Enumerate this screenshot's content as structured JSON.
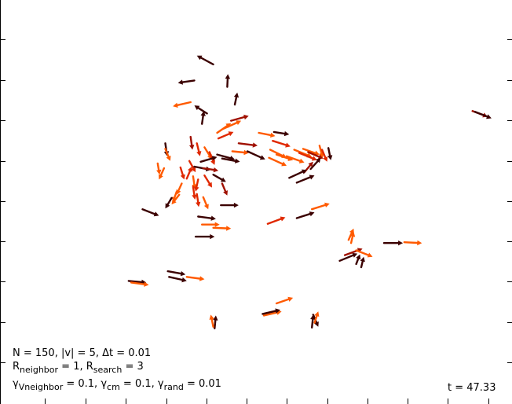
{
  "chart_data": {
    "type": "scatter",
    "title": "",
    "xlabel": "",
    "ylabel": "",
    "grid": false,
    "legend": "none",
    "colors": {
      "dark": "#3b0000",
      "mid": "#a01000",
      "red": "#e02800",
      "orange": "#ff5a00",
      "light": "#ff7a10"
    },
    "arrows": [
      {
        "x": 5.0,
        "y": 80.0,
        "u": -2.6,
        "v": -0.6,
        "c": "dark"
      },
      {
        "x": 4.4,
        "y": 74.6,
        "u": -2.8,
        "v": -1.0,
        "c": "orange"
      },
      {
        "x": 8.0,
        "y": 84.0,
        "u": -2.6,
        "v": 2.2,
        "c": "dark"
      },
      {
        "x": 10.2,
        "y": 78.4,
        "u": 0.1,
        "v": 3.2,
        "c": "dark"
      },
      {
        "x": 11.4,
        "y": 74.0,
        "u": 0.4,
        "v": 3.0,
        "c": "dark"
      },
      {
        "x": 7.0,
        "y": 71.8,
        "u": -2.0,
        "v": 2.0,
        "c": "dark"
      },
      {
        "x": 6.2,
        "y": 69.2,
        "u": 0.3,
        "v": 3.2,
        "c": "dark"
      },
      {
        "x": 10.8,
        "y": 70.0,
        "u": 2.8,
        "v": 1.2,
        "c": "mid"
      },
      {
        "x": 9.6,
        "y": 68.0,
        "u": 2.8,
        "v": 2.0,
        "c": "orange"
      },
      {
        "x": 8.6,
        "y": 67.0,
        "u": 2.2,
        "v": 2.4,
        "c": "orange"
      },
      {
        "x": 8.8,
        "y": 65.6,
        "u": 2.4,
        "v": 1.6,
        "c": "red"
      },
      {
        "x": 12.0,
        "y": 64.4,
        "u": 3.0,
        "v": -0.6,
        "c": "mid"
      },
      {
        "x": 11.0,
        "y": 62.4,
        "u": 2.6,
        "v": -0.4,
        "c": "orange"
      },
      {
        "x": 13.4,
        "y": 62.4,
        "u": 2.8,
        "v": -2.0,
        "c": "dark"
      },
      {
        "x": 0.4,
        "y": 64.4,
        "u": 0.3,
        "v": -3.2,
        "c": "dark"
      },
      {
        "x": 0.4,
        "y": 63.0,
        "u": 0.8,
        "v": -3.0,
        "c": "orange"
      },
      {
        "x": -0.8,
        "y": 59.4,
        "u": 0.3,
        "v": -2.8,
        "c": "orange"
      },
      {
        "x": 0.2,
        "y": 58.2,
        "u": -0.8,
        "v": -2.8,
        "c": "orange"
      },
      {
        "x": 4.4,
        "y": 66.0,
        "u": 0.3,
        "v": -3.2,
        "c": "mid"
      },
      {
        "x": 5.4,
        "y": 64.4,
        "u": 0.5,
        "v": -3.2,
        "c": "red"
      },
      {
        "x": 6.6,
        "y": 63.4,
        "u": 1.2,
        "v": -3.0,
        "c": "orange"
      },
      {
        "x": 7.4,
        "y": 62.2,
        "u": 0.8,
        "v": -3.2,
        "c": "red"
      },
      {
        "x": 8.6,
        "y": 61.6,
        "u": 2.8,
        "v": -1.2,
        "c": "dark"
      },
      {
        "x": 9.4,
        "y": 60.6,
        "u": 2.8,
        "v": -0.8,
        "c": "dark"
      },
      {
        "x": 4.2,
        "y": 60.0,
        "u": 1.0,
        "v": -2.8,
        "c": "red"
      },
      {
        "x": 5.0,
        "y": 58.6,
        "u": 2.6,
        "v": -0.8,
        "c": "dark"
      },
      {
        "x": 6.0,
        "y": 59.8,
        "u": 2.6,
        "v": 1.2,
        "c": "dark"
      },
      {
        "x": 6.4,
        "y": 58.2,
        "u": 2.4,
        "v": -0.6,
        "c": "mid"
      },
      {
        "x": 3.8,
        "y": 55.6,
        "u": 0.8,
        "v": 3.0,
        "c": "red"
      },
      {
        "x": 4.8,
        "y": 56.2,
        "u": 0.3,
        "v": -3.2,
        "c": "orange"
      },
      {
        "x": 5.6,
        "y": 55.4,
        "u": -0.4,
        "v": -3.0,
        "c": "red"
      },
      {
        "x": 6.6,
        "y": 56.4,
        "u": 1.2,
        "v": -3.0,
        "c": "red"
      },
      {
        "x": 8.0,
        "y": 56.6,
        "u": 2.0,
        "v": -1.8,
        "c": "dark"
      },
      {
        "x": 9.4,
        "y": 54.4,
        "u": 0.8,
        "v": -3.0,
        "c": "mid"
      },
      {
        "x": 2.8,
        "y": 58.4,
        "u": 0.6,
        "v": -3.0,
        "c": "red"
      },
      {
        "x": 3.0,
        "y": 54.4,
        "u": -0.8,
        "v": -2.8,
        "c": "orange"
      },
      {
        "x": 2.2,
        "y": 52.4,
        "u": -0.6,
        "v": -2.6,
        "c": "orange"
      },
      {
        "x": 1.4,
        "y": 50.8,
        "u": -1.0,
        "v": -2.6,
        "c": "dark"
      },
      {
        "x": 2.6,
        "y": 51.6,
        "u": -1.2,
        "v": -2.4,
        "c": "orange"
      },
      {
        "x": 4.8,
        "y": 53.6,
        "u": 0.3,
        "v": -3.2,
        "c": "red"
      },
      {
        "x": 5.4,
        "y": 51.8,
        "u": 0.3,
        "v": -3.2,
        "c": "red"
      },
      {
        "x": 6.4,
        "y": 51.0,
        "u": 0.8,
        "v": -3.0,
        "c": "orange"
      },
      {
        "x": 9.2,
        "y": 49.0,
        "u": 2.8,
        "v": 0.0,
        "c": "dark"
      },
      {
        "x": 17.6,
        "y": 67.2,
        "u": 2.4,
        "v": -0.6,
        "c": "dark"
      },
      {
        "x": 15.2,
        "y": 67.0,
        "u": 2.6,
        "v": -0.8,
        "c": "orange"
      },
      {
        "x": 17.4,
        "y": 65.0,
        "u": 2.8,
        "v": -1.4,
        "c": "red"
      },
      {
        "x": 17.0,
        "y": 62.8,
        "u": 2.6,
        "v": -2.0,
        "c": "orange"
      },
      {
        "x": 16.8,
        "y": 60.8,
        "u": 2.8,
        "v": -2.0,
        "c": "orange"
      },
      {
        "x": 18.0,
        "y": 61.6,
        "u": 2.6,
        "v": -1.4,
        "c": "orange"
      },
      {
        "x": 19.6,
        "y": 61.2,
        "u": 2.8,
        "v": -1.6,
        "c": "orange"
      },
      {
        "x": 20.8,
        "y": 62.8,
        "u": 2.8,
        "v": -1.8,
        "c": "orange"
      },
      {
        "x": 21.6,
        "y": 62.0,
        "u": 2.8,
        "v": -1.8,
        "c": "red"
      },
      {
        "x": 22.2,
        "y": 63.0,
        "u": 2.6,
        "v": -1.4,
        "c": "orange"
      },
      {
        "x": 23.0,
        "y": 62.2,
        "u": 2.4,
        "v": -1.6,
        "c": "mid"
      },
      {
        "x": 24.8,
        "y": 63.8,
        "u": 0.5,
        "v": -3.0,
        "c": "orange"
      },
      {
        "x": 25.2,
        "y": 62.8,
        "u": 0.8,
        "v": -3.0,
        "c": "red"
      },
      {
        "x": 26.2,
        "y": 63.2,
        "u": 0.4,
        "v": -3.0,
        "c": "dark"
      },
      {
        "x": 23.4,
        "y": 58.0,
        "u": 1.6,
        "v": 2.8,
        "c": "dark"
      },
      {
        "x": 22.4,
        "y": 57.2,
        "u": 1.4,
        "v": 2.6,
        "c": "mid"
      },
      {
        "x": 20.0,
        "y": 55.8,
        "u": 2.8,
        "v": 2.0,
        "c": "dark"
      },
      {
        "x": 21.2,
        "y": 54.6,
        "u": 2.8,
        "v": 1.8,
        "c": "dark"
      },
      {
        "x": 16.6,
        "y": 44.4,
        "u": 2.8,
        "v": 1.6,
        "c": "red"
      },
      {
        "x": 21.2,
        "y": 45.8,
        "u": 2.8,
        "v": 1.4,
        "c": "dark"
      },
      {
        "x": 23.6,
        "y": 48.0,
        "u": 2.8,
        "v": 1.4,
        "c": "orange"
      },
      {
        "x": -3.2,
        "y": 48.0,
        "u": 2.6,
        "v": -1.6,
        "c": "dark"
      },
      {
        "x": 5.6,
        "y": 46.2,
        "u": 2.8,
        "v": -0.6,
        "c": "dark"
      },
      {
        "x": 6.2,
        "y": 44.2,
        "u": 2.8,
        "v": 0.0,
        "c": "orange"
      },
      {
        "x": 8.0,
        "y": 43.4,
        "u": 2.8,
        "v": -0.2,
        "c": "orange"
      },
      {
        "x": 5.2,
        "y": 41.2,
        "u": 3.0,
        "v": 0.0,
        "c": "dark"
      },
      {
        "x": 29.4,
        "y": 40.4,
        "u": 0.8,
        "v": 2.8,
        "c": "orange"
      },
      {
        "x": 29.8,
        "y": 39.6,
        "u": 0.4,
        "v": 2.8,
        "c": "orange"
      },
      {
        "x": 28.0,
        "y": 35.2,
        "u": 2.8,
        "v": 1.8,
        "c": "dark"
      },
      {
        "x": 28.8,
        "y": 36.6,
        "u": 2.8,
        "v": 1.6,
        "c": "mid"
      },
      {
        "x": 30.6,
        "y": 37.8,
        "u": 2.6,
        "v": -1.6,
        "c": "orange"
      },
      {
        "x": 30.6,
        "y": 34.4,
        "u": 0.6,
        "v": 2.4,
        "c": "dark"
      },
      {
        "x": 31.4,
        "y": 33.6,
        "u": 0.4,
        "v": 2.6,
        "c": "dark"
      },
      {
        "x": 35.0,
        "y": 39.6,
        "u": 3.0,
        "v": 0.0,
        "c": "dark"
      },
      {
        "x": 38.2,
        "y": 39.8,
        "u": 2.8,
        "v": -0.2,
        "c": "orange"
      },
      {
        "x": -5.4,
        "y": 30.2,
        "u": 2.8,
        "v": -0.4,
        "c": "dark"
      },
      {
        "x": -5.0,
        "y": 29.8,
        "u": 2.8,
        "v": -0.6,
        "c": "orange"
      },
      {
        "x": 1.0,
        "y": 31.2,
        "u": 2.8,
        "v": -1.0,
        "c": "dark"
      },
      {
        "x": 0.8,
        "y": 32.6,
        "u": 2.8,
        "v": -0.8,
        "c": "dark"
      },
      {
        "x": 3.8,
        "y": 31.2,
        "u": 2.8,
        "v": -0.6,
        "c": "orange"
      },
      {
        "x": 18.0,
        "y": 24.6,
        "u": 2.6,
        "v": 1.4,
        "c": "orange"
      },
      {
        "x": 16.0,
        "y": 21.6,
        "u": 2.8,
        "v": 1.0,
        "c": "orange"
      },
      {
        "x": 15.8,
        "y": 22.0,
        "u": 2.8,
        "v": 1.0,
        "c": "dark"
      },
      {
        "x": 8.2,
        "y": 18.4,
        "u": 0.2,
        "v": 3.2,
        "c": "dark"
      },
      {
        "x": 8.0,
        "y": 18.8,
        "u": -0.4,
        "v": 3.0,
        "c": "orange"
      },
      {
        "x": 23.8,
        "y": 21.8,
        "u": 0.8,
        "v": -3.0,
        "c": "dark"
      },
      {
        "x": 23.6,
        "y": 18.6,
        "u": 0.2,
        "v": 3.2,
        "c": "dark"
      },
      {
        "x": 24.0,
        "y": 19.8,
        "u": 0.6,
        "v": 2.8,
        "c": "orange"
      },
      {
        "x": 49.0,
        "y": 72.4,
        "u": 2.4,
        "v": -1.4,
        "c": "mid"
      },
      {
        "x": 49.4,
        "y": 72.2,
        "u": 2.6,
        "v": -1.6,
        "c": "dark"
      }
    ],
    "labels": {
      "line1": "N = 150, |v| = 5, Δt = 0.01",
      "rn_sym": "R",
      "rn_sub": "neighbor",
      "rn_val": " = 1, ",
      "rs_sym": "R",
      "rs_sub": "search",
      "rs_val": " = 3",
      "gv_sym": "γ",
      "gv_sub": "Vneighbor",
      "gv_val": " = 0.1, ",
      "gc_sym": "γ",
      "gc_sub": "cm",
      "gc_val": " = 0.1, ",
      "gr_sym": "γ",
      "gr_sub": "rand",
      "gr_val": " = 0.01",
      "time": "t = 47.33"
    }
  }
}
